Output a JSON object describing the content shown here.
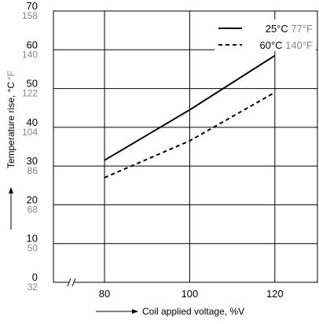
{
  "chart_data": {
    "type": "line",
    "x": [
      80,
      100,
      120
    ],
    "series": [
      {
        "name": "25°C",
        "name_alt": "77°F",
        "style": "solid",
        "values": [
          31.5,
          44.5,
          58.5
        ]
      },
      {
        "name": "60°C",
        "name_alt": "140°F",
        "style": "dashed",
        "values": [
          27.0,
          36.5,
          49.0
        ]
      }
    ],
    "xlabel": "Coil applied voltage, %V",
    "ylabel": "Temperature rise, °C",
    "ylabel_alt": "°F",
    "xlim": [
      68,
      130
    ],
    "ylim": [
      0,
      70
    ],
    "x_ticks": [
      "80",
      "100",
      "120"
    ],
    "y_ticks": [
      "0",
      "10",
      "20",
      "30",
      "40",
      "50",
      "60",
      "70"
    ],
    "y_ticks_alt": [
      "32",
      "50",
      "68",
      "86",
      "104",
      "122",
      "140",
      "158"
    ],
    "grid": true,
    "axis_break": true,
    "legend_position": "top-right",
    "colors": {
      "primary": "#000000",
      "secondary": "#888888"
    }
  }
}
